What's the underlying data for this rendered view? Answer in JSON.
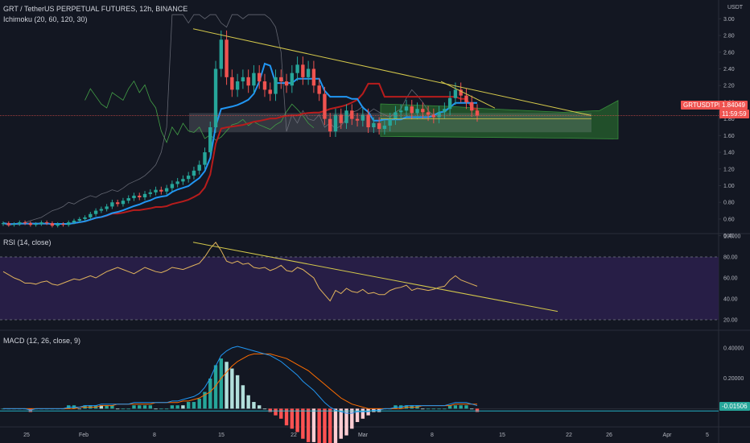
{
  "header": {
    "title": "GRT / TetherUS PERPETUAL FUTURES, 12h, BINANCE",
    "indicator": "Ichimoku (20, 60, 120, 30)",
    "currency": "USDT"
  },
  "price_tag": {
    "symbol": "GRTUSDTPERP",
    "value": "1.84049",
    "countdown": "11:59:59"
  },
  "rsi_label": "RSI (14, close)",
  "macd_label": "MACD (12, 26, close, 9)",
  "macd_tag": "-0.01506",
  "colors": {
    "background": "#131722",
    "up": "#26a69a",
    "down": "#ef5350",
    "conversion": "#2196f3",
    "base": "#b71c1c",
    "lagging": "#43a047",
    "span": "#787b86",
    "trendline": "#d4c84b",
    "rsi": "#e0b35c",
    "rsi_band": "#2a1f4a",
    "macd": "#2196f3",
    "signal": "#ff6d00",
    "cloud": "#2e7d32",
    "price_tag": "#ef5350"
  },
  "chart_data": [
    {
      "type": "candlestick",
      "title": "GRT / TetherUS PERPETUAL FUTURES, 12h, BINANCE",
      "ylim": [
        0.3,
        3.1
      ],
      "y_ticks": [
        "3.00",
        "2.80",
        "2.60",
        "2.40",
        "2.20",
        "2.00",
        "1.80",
        "1.60",
        "1.40",
        "1.20",
        "1.00",
        "0.80",
        "0.60",
        "0.40"
      ],
      "x_ticks": [
        "25",
        "Feb",
        "8",
        "15",
        "22",
        "Mar",
        "8",
        "15",
        "22",
        "26",
        "Apr",
        "5"
      ],
      "series_note": "approximate closes per 12h bar, Jan 22 - Mar 11",
      "close": [
        0.55,
        0.53,
        0.54,
        0.56,
        0.55,
        0.53,
        0.54,
        0.56,
        0.55,
        0.52,
        0.54,
        0.53,
        0.56,
        0.58,
        0.6,
        0.62,
        0.66,
        0.7,
        0.72,
        0.75,
        0.8,
        0.78,
        0.82,
        0.85,
        0.88,
        0.86,
        0.9,
        0.92,
        0.95,
        0.93,
        0.97,
        1.02,
        1.05,
        1.08,
        1.12,
        1.18,
        1.25,
        1.4,
        1.7,
        2.4,
        2.75,
        2.3,
        2.15,
        2.25,
        2.3,
        2.2,
        2.35,
        2.25,
        2.15,
        2.1,
        2.3,
        2.25,
        2.2,
        2.35,
        2.45,
        2.3,
        2.4,
        2.2,
        2.1,
        1.8,
        1.65,
        1.85,
        1.75,
        1.9,
        1.8,
        1.78,
        1.85,
        1.7,
        1.75,
        1.68,
        1.72,
        1.8,
        1.88,
        1.9,
        1.95,
        1.87,
        1.92,
        1.88,
        1.85,
        1.82,
        1.88,
        1.92,
        2.05,
        2.15,
        2.08,
        2.0,
        1.9,
        1.84
      ],
      "current_price": 1.84049
    },
    {
      "type": "line",
      "title": "RSI (14, close)",
      "ylim": [
        10,
        100
      ],
      "y_ticks": [
        "100.00",
        "80.00",
        "60.00",
        "40.00",
        "20.00"
      ],
      "band": [
        20,
        80
      ],
      "values": [
        66,
        63,
        60,
        58,
        55,
        55,
        54,
        56,
        57,
        54,
        53,
        55,
        57,
        59,
        58,
        60,
        62,
        60,
        63,
        66,
        68,
        70,
        68,
        66,
        64,
        67,
        70,
        68,
        66,
        65,
        67,
        70,
        69,
        68,
        70,
        72,
        74,
        80,
        88,
        94,
        86,
        76,
        74,
        76,
        73,
        74,
        70,
        69,
        70,
        67,
        69,
        72,
        67,
        66,
        70,
        68,
        64,
        60,
        50,
        44,
        38,
        48,
        45,
        50,
        47,
        46,
        49,
        45,
        46,
        44,
        44,
        48,
        50,
        51,
        53,
        48,
        50,
        49,
        48,
        49,
        51,
        52,
        58,
        62,
        58,
        56,
        54,
        52
      ]
    },
    {
      "type": "line",
      "title": "MACD (12, 26, close, 9)",
      "ylim": [
        -0.12,
        0.5
      ],
      "y_ticks": [
        "0.40000",
        "0.20000"
      ],
      "series": [
        {
          "values": [
            0.0,
            0.0,
            0.0,
            0.0,
            0.0,
            -0.01,
            0.0,
            0.0,
            0.0,
            0.0,
            0.0,
            0.0,
            0.01,
            0.01,
            0.01,
            0.02,
            0.02,
            0.02,
            0.03,
            0.03,
            0.03,
            0.03,
            0.03,
            0.03,
            0.04,
            0.04,
            0.04,
            0.04,
            0.04,
            0.04,
            0.04,
            0.05,
            0.05,
            0.06,
            0.07,
            0.08,
            0.1,
            0.14,
            0.2,
            0.28,
            0.35,
            0.38,
            0.4,
            0.41,
            0.4,
            0.39,
            0.38,
            0.37,
            0.36,
            0.35,
            0.33,
            0.31,
            0.28,
            0.25,
            0.22,
            0.18,
            0.15,
            0.12,
            0.08,
            0.04,
            0.01,
            -0.01,
            -0.02,
            -0.03,
            -0.03,
            -0.02,
            -0.02,
            -0.02,
            -0.01,
            -0.01,
            0.0,
            0.0,
            0.01,
            0.01,
            0.02,
            0.02,
            0.02,
            0.02,
            0.02,
            0.02,
            0.02,
            0.02,
            0.03,
            0.04,
            0.04,
            0.04,
            0.03,
            0.02
          ]
        },
        {
          "values": [
            0.0,
            0.0,
            0.0,
            0.0,
            0.0,
            0.0,
            0.0,
            0.0,
            0.0,
            0.0,
            0.0,
            0.0,
            0.0,
            0.0,
            0.01,
            0.01,
            0.01,
            0.01,
            0.02,
            0.02,
            0.02,
            0.03,
            0.03,
            0.03,
            0.03,
            0.03,
            0.03,
            0.03,
            0.04,
            0.04,
            0.04,
            0.04,
            0.04,
            0.05,
            0.05,
            0.06,
            0.07,
            0.09,
            0.11,
            0.15,
            0.2,
            0.24,
            0.28,
            0.31,
            0.33,
            0.35,
            0.36,
            0.36,
            0.36,
            0.36,
            0.35,
            0.34,
            0.33,
            0.31,
            0.29,
            0.27,
            0.25,
            0.22,
            0.19,
            0.16,
            0.13,
            0.1,
            0.07,
            0.05,
            0.03,
            0.02,
            0.01,
            0.0,
            0.0,
            0.0,
            0.0,
            0.0,
            0.0,
            0.0,
            0.01,
            0.01,
            0.01,
            0.02,
            0.02,
            0.02,
            0.02,
            0.02,
            0.02,
            0.03,
            0.03,
            0.03,
            0.03,
            0.03
          ]
        }
      ],
      "current": -0.01506
    }
  ]
}
